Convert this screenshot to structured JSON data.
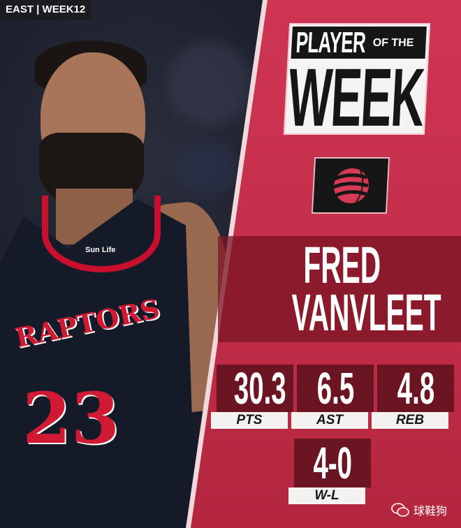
{
  "header_tag": "EAST | WEEK12",
  "title": {
    "line1": "PLAYER",
    "line1b": "OF THE",
    "line2": "WEEK"
  },
  "team_logo": "raptors-claw-ball-logo",
  "player": {
    "first_name": "FRED",
    "last_name": "VANVLEET",
    "jersey_number": "23",
    "jersey_text": "RAPTORS",
    "jersey_sponsor": "Sun Life"
  },
  "stats": [
    {
      "value": "30.3",
      "label": "PTS"
    },
    {
      "value": "6.5",
      "label": "AST"
    },
    {
      "value": "4.8",
      "label": "REB"
    },
    {
      "value": "4-0",
      "label": "W-L"
    }
  ],
  "watermark": "球鞋狗",
  "colors": {
    "panel_red": "#c52f4b",
    "stat_box": "#6b1422",
    "raptors_red": "#c8102e"
  }
}
